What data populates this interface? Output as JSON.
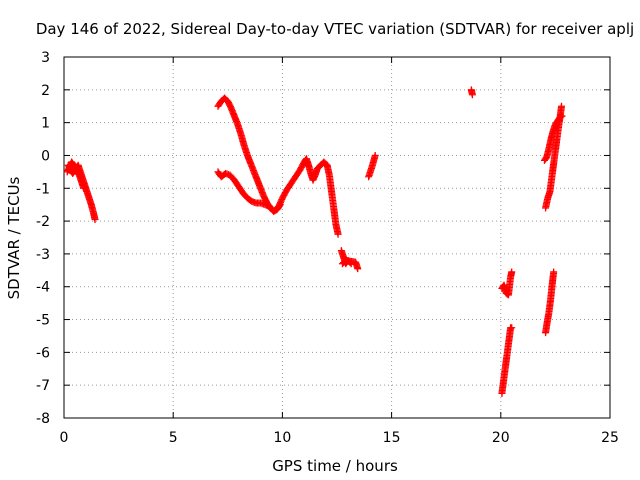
{
  "chart_data": {
    "type": "scatter",
    "title": "Day 146 of 2022, Sidereal Day-to-day VTEC variation (SDTVAR) for receiver aplj",
    "xlabel": "GPS time / hours",
    "ylabel": "SDTVAR / TECUs",
    "xlim": [
      0,
      25
    ],
    "ylim": [
      -8,
      3
    ],
    "xticks": [
      0,
      5,
      10,
      15,
      20,
      25
    ],
    "yticks": [
      -8,
      -7,
      -6,
      -5,
      -4,
      -3,
      -2,
      -1,
      0,
      1,
      2,
      3
    ],
    "grid": true,
    "marker": "plus",
    "color": "#ff0000",
    "segments": [
      [
        [
          0.15,
          -0.5
        ],
        [
          0.25,
          -0.35
        ],
        [
          0.35,
          -0.2
        ],
        [
          0.45,
          -0.3
        ],
        [
          0.55,
          -0.4
        ],
        [
          0.65,
          -0.3
        ],
        [
          0.75,
          -0.5
        ],
        [
          0.85,
          -0.7
        ],
        [
          0.95,
          -0.9
        ],
        [
          1.05,
          -1.1
        ],
        [
          1.15,
          -1.3
        ],
        [
          1.25,
          -1.5
        ],
        [
          1.35,
          -1.75
        ],
        [
          1.42,
          -1.95
        ]
      ],
      [
        [
          0.2,
          -0.3
        ],
        [
          0.3,
          -0.45
        ],
        [
          0.4,
          -0.55
        ],
        [
          0.5,
          -0.45
        ],
        [
          0.6,
          -0.5
        ],
        [
          0.7,
          -0.6
        ],
        [
          0.8,
          -0.8
        ],
        [
          0.9,
          -1.0
        ]
      ],
      [
        [
          7.05,
          -0.5
        ],
        [
          7.2,
          -0.65
        ],
        [
          7.4,
          -0.55
        ],
        [
          7.6,
          -0.6
        ],
        [
          7.8,
          -0.75
        ],
        [
          8.0,
          -0.95
        ],
        [
          8.2,
          -1.15
        ],
        [
          8.4,
          -1.3
        ],
        [
          8.6,
          -1.4
        ],
        [
          8.8,
          -1.45
        ],
        [
          9.0,
          -1.45
        ],
        [
          9.2,
          -1.5
        ],
        [
          9.4,
          -1.55
        ],
        [
          9.6,
          -1.7
        ],
        [
          9.8,
          -1.6
        ],
        [
          10.0,
          -1.3
        ],
        [
          10.2,
          -1.05
        ],
        [
          10.4,
          -0.85
        ],
        [
          10.6,
          -0.65
        ],
        [
          10.8,
          -0.45
        ],
        [
          11.0,
          -0.2
        ],
        [
          11.1,
          -0.1
        ],
        [
          11.2,
          -0.3
        ],
        [
          11.3,
          -0.55
        ],
        [
          11.4,
          -0.75
        ],
        [
          11.5,
          -0.6
        ],
        [
          11.6,
          -0.4
        ],
        [
          11.75,
          -0.3
        ],
        [
          11.9,
          -0.2
        ],
        [
          12.05,
          -0.3
        ],
        [
          12.15,
          -0.6
        ],
        [
          12.25,
          -1.1
        ],
        [
          12.35,
          -1.6
        ],
        [
          12.45,
          -2.1
        ],
        [
          12.55,
          -2.4
        ]
      ],
      [
        [
          7.05,
          1.5
        ],
        [
          7.2,
          1.65
        ],
        [
          7.35,
          1.75
        ],
        [
          7.5,
          1.65
        ],
        [
          7.65,
          1.45
        ],
        [
          7.8,
          1.2
        ],
        [
          7.95,
          0.95
        ],
        [
          8.1,
          0.65
        ],
        [
          8.25,
          0.3
        ],
        [
          8.4,
          0.0
        ],
        [
          8.55,
          -0.25
        ],
        [
          8.7,
          -0.5
        ],
        [
          8.85,
          -0.75
        ],
        [
          9.0,
          -1.0
        ],
        [
          9.15,
          -1.25
        ],
        [
          9.3,
          -1.45
        ],
        [
          9.45,
          -1.6
        ],
        [
          9.6,
          -1.7
        ],
        [
          9.75,
          -1.65
        ],
        [
          9.9,
          -1.5
        ]
      ],
      [
        [
          12.7,
          -2.9
        ],
        [
          12.8,
          -3.1
        ],
        [
          12.9,
          -3.3
        ],
        [
          13.0,
          -3.2
        ],
        [
          13.15,
          -3.3
        ]
      ],
      [
        [
          12.75,
          -3.3
        ],
        [
          12.9,
          -3.2
        ],
        [
          13.35,
          -3.25
        ],
        [
          13.45,
          -3.45
        ]
      ],
      [
        [
          13.95,
          -0.65
        ],
        [
          14.1,
          -0.35
        ],
        [
          14.25,
          -0.0
        ]
      ],
      [
        [
          18.65,
          2.0
        ],
        [
          18.7,
          1.85
        ]
      ],
      [
        [
          20.05,
          -7.25
        ],
        [
          20.12,
          -6.9
        ],
        [
          20.2,
          -6.5
        ],
        [
          20.3,
          -6.0
        ],
        [
          20.38,
          -5.6
        ],
        [
          20.45,
          -5.25
        ],
        [
          20.5,
          -5.25
        ]
      ],
      [
        [
          20.05,
          -4.05
        ],
        [
          20.15,
          -3.95
        ],
        [
          20.25,
          -4.2
        ],
        [
          20.35,
          -4.25
        ],
        [
          20.45,
          -3.7
        ],
        [
          20.5,
          -3.55
        ]
      ],
      [
        [
          22.05,
          -1.6
        ],
        [
          22.15,
          -1.3
        ],
        [
          22.25,
          -1.1
        ],
        [
          22.35,
          -0.6
        ],
        [
          22.45,
          -0.1
        ],
        [
          22.55,
          0.4
        ],
        [
          22.65,
          0.9
        ],
        [
          22.72,
          1.2
        ],
        [
          22.78,
          1.5
        ]
      ],
      [
        [
          22.0,
          -0.15
        ],
        [
          22.1,
          -0.05
        ],
        [
          22.2,
          0.2
        ],
        [
          22.3,
          0.5
        ],
        [
          22.4,
          0.75
        ],
        [
          22.5,
          0.95
        ],
        [
          22.6,
          1.05
        ],
        [
          22.7,
          1.15
        ],
        [
          22.8,
          1.2
        ]
      ],
      [
        [
          22.05,
          -5.4
        ],
        [
          22.12,
          -5.1
        ],
        [
          22.2,
          -4.8
        ],
        [
          22.28,
          -4.4
        ],
        [
          22.35,
          -3.95
        ],
        [
          22.42,
          -3.55
        ]
      ]
    ]
  }
}
